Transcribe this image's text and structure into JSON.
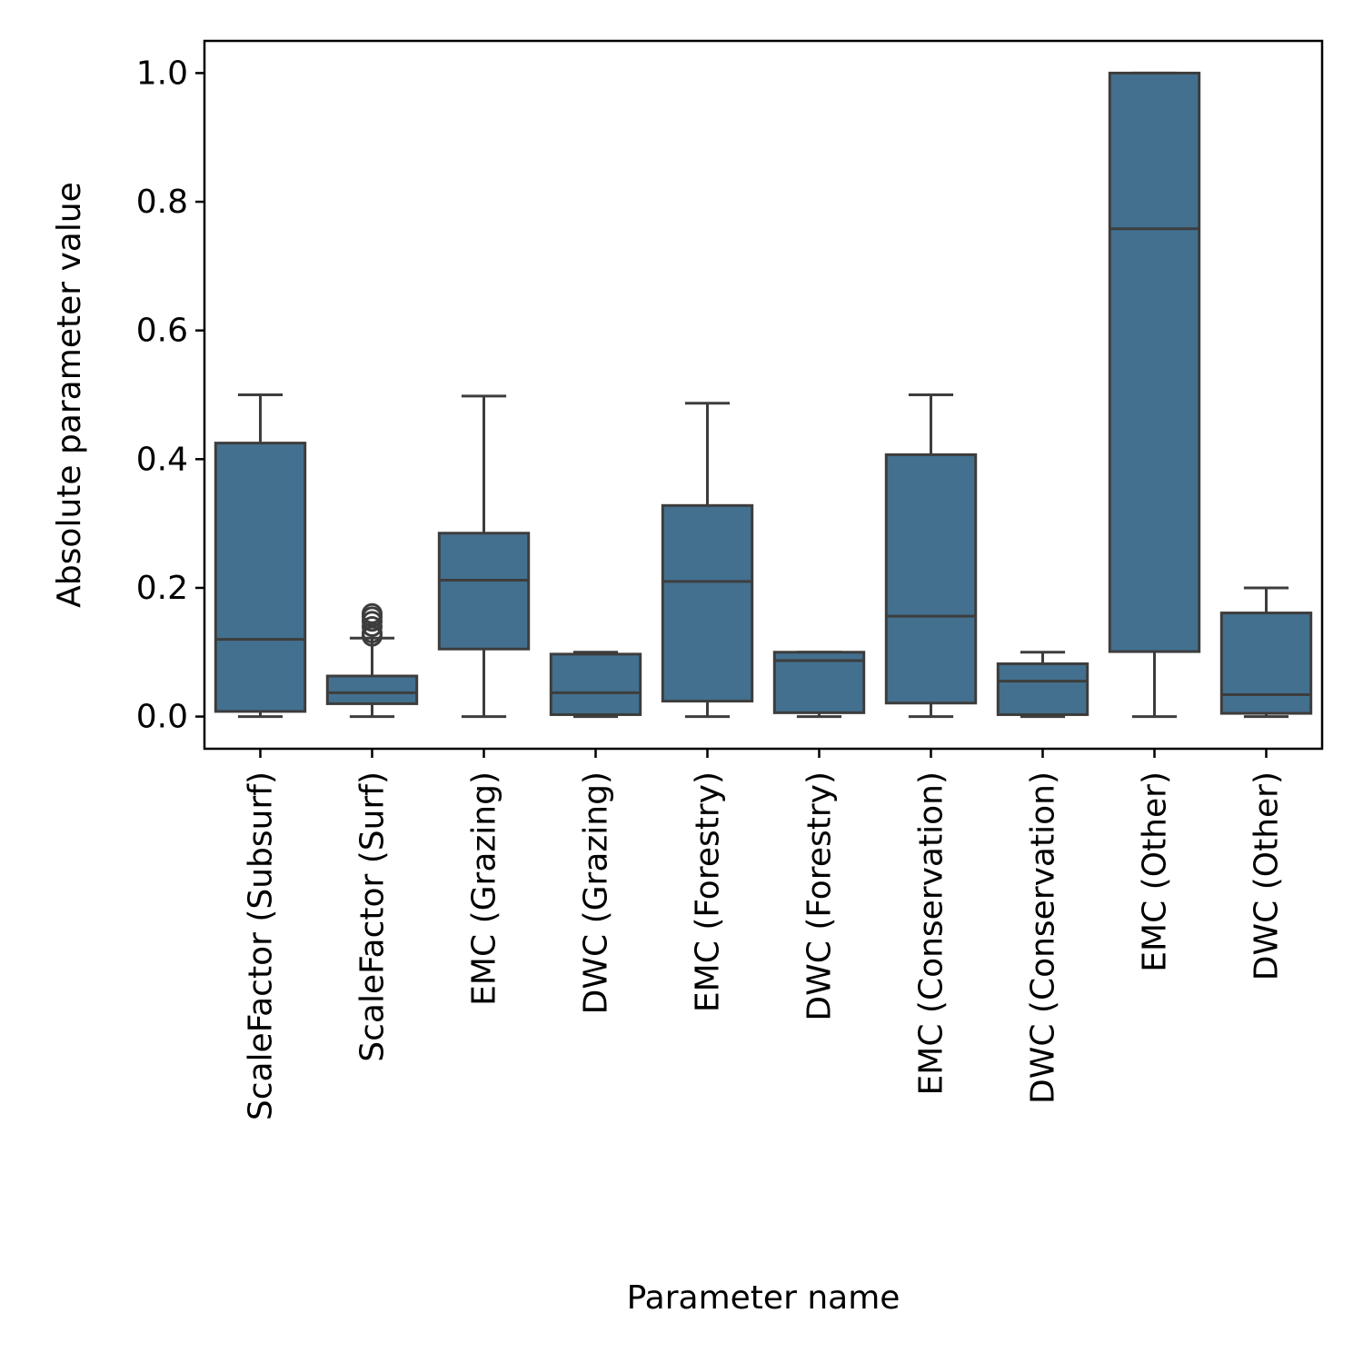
{
  "chart_data": {
    "type": "box",
    "title": "",
    "xlabel": "Parameter name",
    "ylabel": "Absolute parameter value",
    "ylim": [
      -0.05,
      1.05
    ],
    "yticks": [
      0.0,
      0.2,
      0.4,
      0.6,
      0.8,
      1.0
    ],
    "ytick_labels": [
      "0.0",
      "0.2",
      "0.4",
      "0.6",
      "0.8",
      "1.0"
    ],
    "grid": false,
    "colors": {
      "box_fill": "#43708f",
      "line": "#3d3d3d"
    },
    "categories": [
      "ScaleFactor (Subsurf)",
      "ScaleFactor (Surf)",
      "EMC (Grazing)",
      "DWC (Grazing)",
      "EMC (Forestry)",
      "DWC (Forestry)",
      "EMC (Conservation)",
      "DWC (Conservation)",
      "EMC (Other)",
      "DWC (Other)"
    ],
    "boxes": [
      {
        "whislo": 0.0,
        "q1": 0.008,
        "med": 0.12,
        "q3": 0.425,
        "whishi": 0.5,
        "fliers": []
      },
      {
        "whislo": 0.0,
        "q1": 0.02,
        "med": 0.037,
        "q3": 0.063,
        "whishi": 0.122,
        "fliers": [
          0.125,
          0.13,
          0.14,
          0.148,
          0.155,
          0.16
        ]
      },
      {
        "whislo": 0.0,
        "q1": 0.105,
        "med": 0.212,
        "q3": 0.285,
        "whishi": 0.498,
        "fliers": []
      },
      {
        "whislo": 0.0,
        "q1": 0.003,
        "med": 0.037,
        "q3": 0.097,
        "whishi": 0.1,
        "fliers": []
      },
      {
        "whislo": 0.0,
        "q1": 0.024,
        "med": 0.21,
        "q3": 0.328,
        "whishi": 0.487,
        "fliers": []
      },
      {
        "whislo": 0.0,
        "q1": 0.006,
        "med": 0.087,
        "q3": 0.1,
        "whishi": 0.1,
        "fliers": []
      },
      {
        "whislo": 0.0,
        "q1": 0.021,
        "med": 0.156,
        "q3": 0.407,
        "whishi": 0.5,
        "fliers": []
      },
      {
        "whislo": 0.0,
        "q1": 0.003,
        "med": 0.055,
        "q3": 0.082,
        "whishi": 0.1,
        "fliers": []
      },
      {
        "whislo": 0.0,
        "q1": 0.101,
        "med": 0.758,
        "q3": 1.0,
        "whishi": 1.0,
        "fliers": []
      },
      {
        "whislo": 0.0,
        "q1": 0.005,
        "med": 0.034,
        "q3": 0.161,
        "whishi": 0.2,
        "fliers": []
      }
    ]
  }
}
